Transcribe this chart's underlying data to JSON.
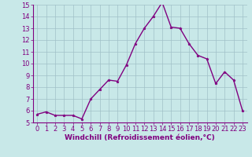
{
  "x": [
    0,
    1,
    2,
    3,
    4,
    5,
    6,
    7,
    8,
    9,
    10,
    11,
    12,
    13,
    14,
    15,
    16,
    17,
    18,
    19,
    20,
    21,
    22,
    23
  ],
  "y": [
    5.7,
    5.9,
    5.6,
    5.6,
    5.6,
    5.3,
    7.0,
    7.8,
    8.6,
    8.5,
    9.9,
    11.7,
    13.0,
    14.0,
    15.2,
    13.1,
    13.0,
    11.7,
    10.7,
    10.4,
    8.3,
    9.3,
    8.6,
    6.0
  ],
  "line_color": "#800080",
  "marker": "*",
  "marker_color": "#800080",
  "bg_color": "#c8e8e8",
  "grid_color": "#a0c0c8",
  "xlabel": "Windchill (Refroidissement éolien,°C)",
  "xlim": [
    -0.5,
    23.5
  ],
  "ylim": [
    5,
    15
  ],
  "yticks": [
    5,
    6,
    7,
    8,
    9,
    10,
    11,
    12,
    13,
    14,
    15
  ],
  "xticks": [
    0,
    1,
    2,
    3,
    4,
    5,
    6,
    7,
    8,
    9,
    10,
    11,
    12,
    13,
    14,
    15,
    16,
    17,
    18,
    19,
    20,
    21,
    22,
    23
  ],
  "xlabel_fontsize": 6.5,
  "tick_fontsize": 6.0,
  "line_width": 1.0,
  "marker_size": 2.5,
  "text_color": "#800080"
}
